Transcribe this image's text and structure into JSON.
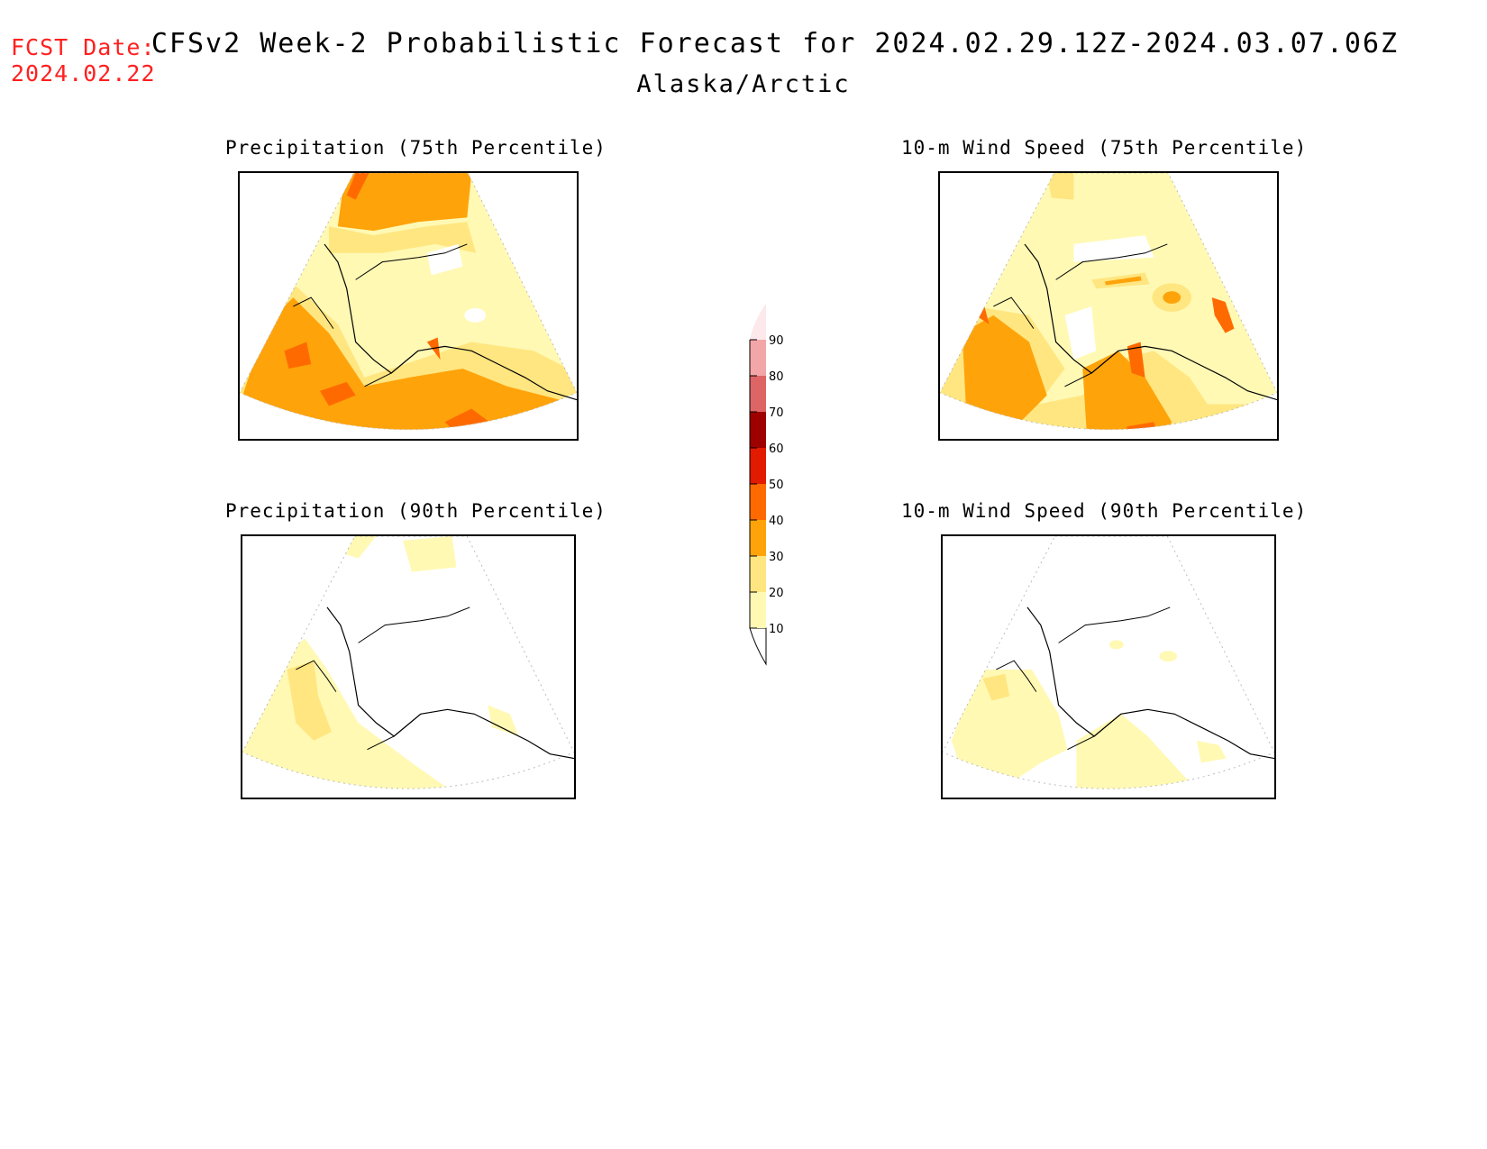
{
  "header": {
    "fcst_label": "FCST Date:",
    "fcst_date": "2024.02.22",
    "title": "CFSv2 Week-2 Probabilistic Forecast for 2024.02.29.12Z-2024.03.07.06Z",
    "subtitle": "Alaska/Arctic"
  },
  "panels": [
    {
      "title": "Precipitation (75th Percentile)"
    },
    {
      "title": "10-m Wind Speed (75th Percentile)"
    },
    {
      "title": "Precipitation (90th Percentile)"
    },
    {
      "title": "10-m Wind Speed (90th Percentile)"
    }
  ],
  "colorbar": {
    "levels": [
      "10",
      "20",
      "30",
      "40",
      "50",
      "60",
      "70",
      "80",
      "90"
    ],
    "colors": [
      "#fff9b4",
      "#ffe680",
      "#ffa30a",
      "#ff6a00",
      "#e21a00",
      "#9e0000",
      "#dd6566",
      "#f3a6a7",
      "#fde8eb"
    ]
  },
  "colors": {
    "fcst_date": "#ff2020",
    "level_10": "#fff9b4",
    "level_20": "#ffe680",
    "level_30": "#ffa30a",
    "level_40": "#ff6a00"
  }
}
